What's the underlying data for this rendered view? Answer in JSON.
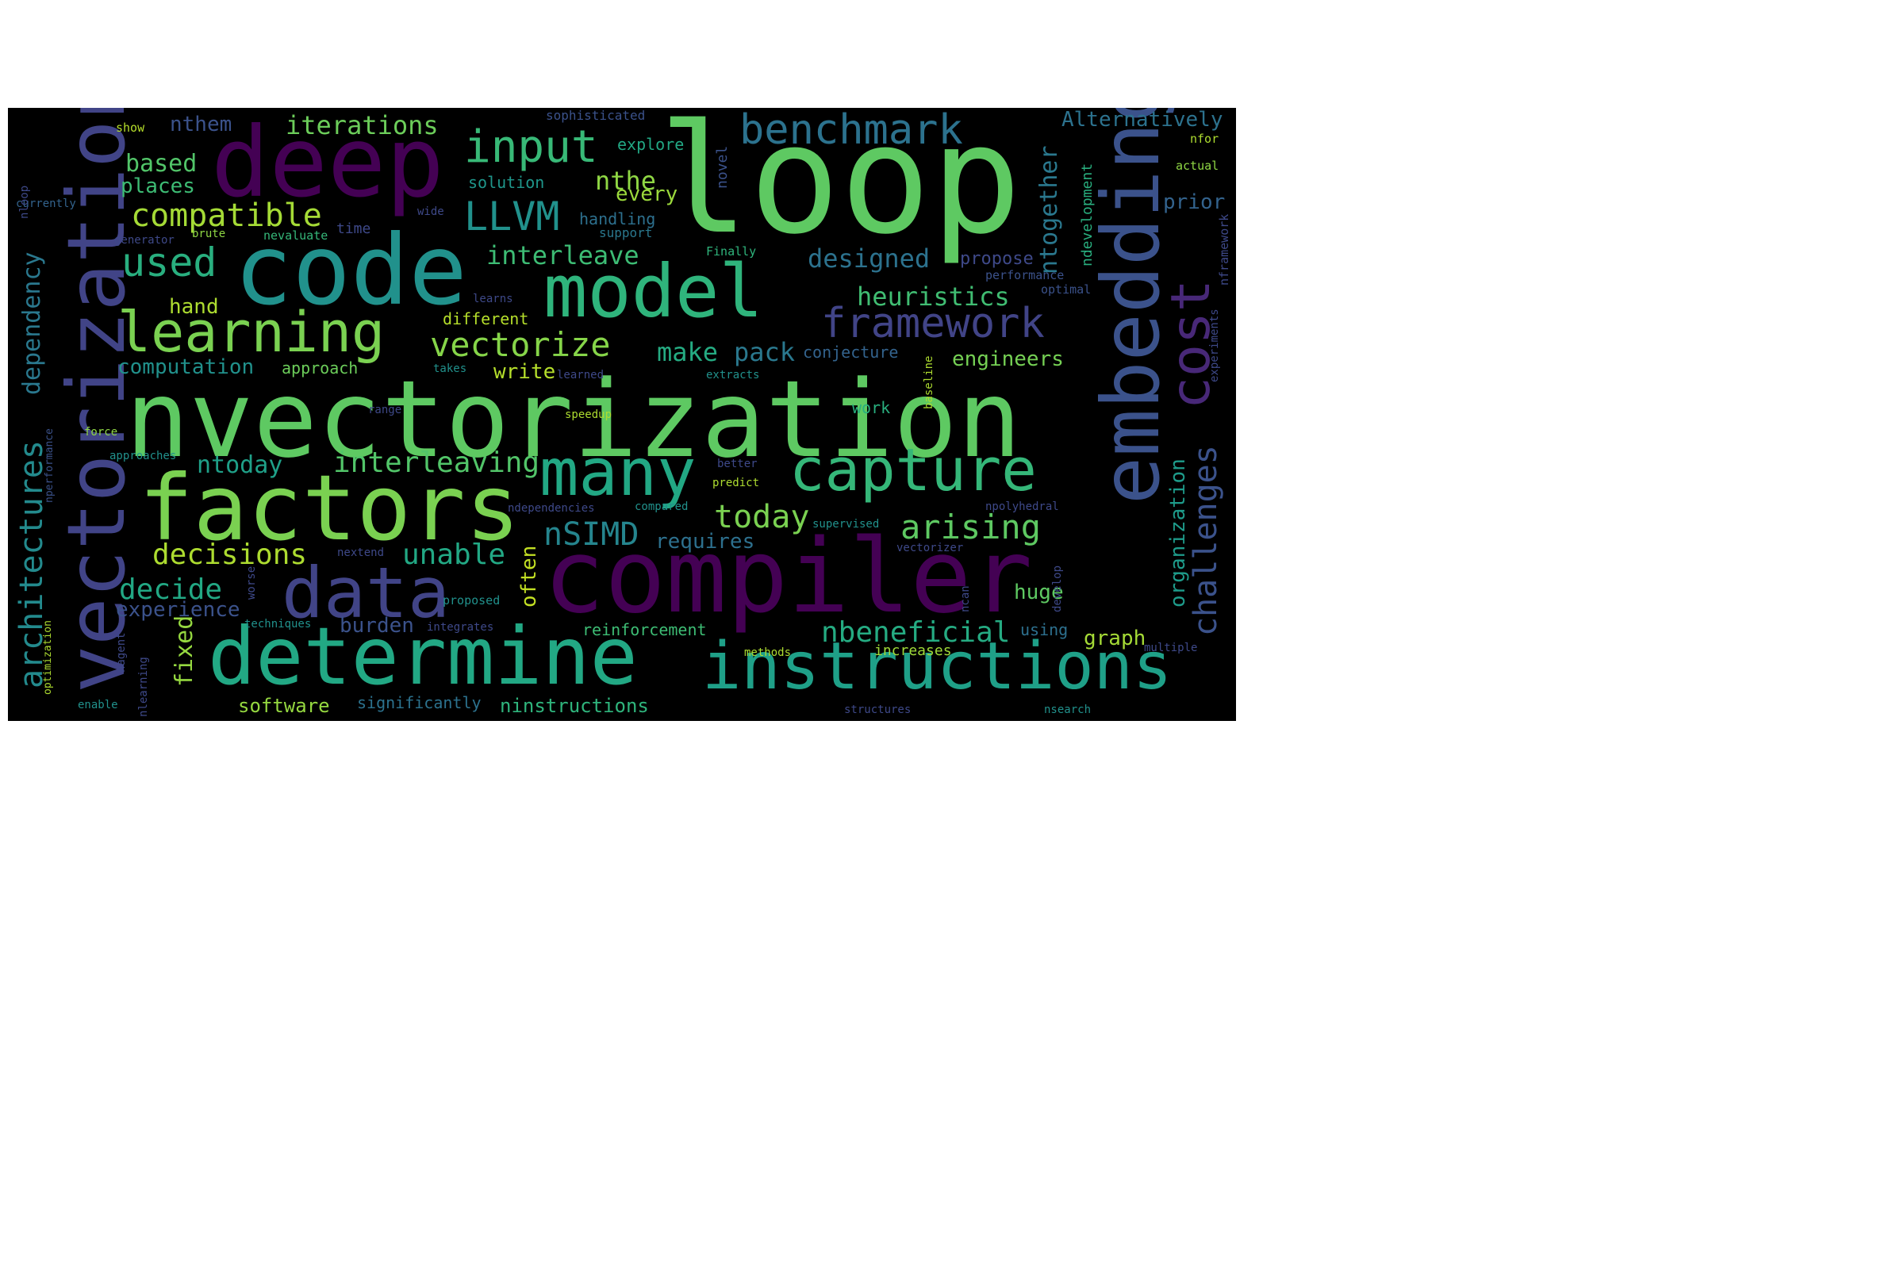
{
  "words": [
    {
      "text": "nvectorization",
      "color": "#5ec962"
    },
    {
      "text": "loop",
      "color": "#5ec962"
    },
    {
      "text": "compiler",
      "color": "#440154"
    },
    {
      "text": "code",
      "color": "#21918c"
    },
    {
      "text": "factors",
      "color": "#7ad151"
    },
    {
      "text": "deep",
      "color": "#440154"
    },
    {
      "text": "vectorization",
      "color": "#414487"
    },
    {
      "text": "determine",
      "color": "#22a884"
    },
    {
      "text": "model",
      "color": "#2fb47c"
    },
    {
      "text": "embedding",
      "color": "#3b528b"
    },
    {
      "text": "instructions",
      "color": "#1fa088"
    },
    {
      "text": "data",
      "color": "#414487"
    },
    {
      "text": "capture",
      "color": "#35b779"
    },
    {
      "text": "many",
      "color": "#22a884"
    },
    {
      "text": "learning",
      "color": "#7ad151"
    },
    {
      "text": "cost",
      "color": "#482878"
    },
    {
      "text": "benchmark",
      "color": "#2c728e"
    },
    {
      "text": "input",
      "color": "#38b977"
    },
    {
      "text": "framework",
      "color": "#414487"
    },
    {
      "text": "LLVM",
      "color": "#21918c"
    },
    {
      "text": "used",
      "color": "#29af7f"
    },
    {
      "text": "vectorize",
      "color": "#86d549"
    },
    {
      "text": "compatible",
      "color": "#a5db36"
    },
    {
      "text": "arising",
      "color": "#5ec962"
    },
    {
      "text": "challenges",
      "color": "#3b528b"
    },
    {
      "text": "architectures",
      "color": "#238a8d"
    },
    {
      "text": "nSIMD",
      "color": "#25858e"
    },
    {
      "text": "interleaving",
      "color": "#52c569"
    },
    {
      "text": "today",
      "color": "#7ad151"
    },
    {
      "text": "decisions",
      "color": "#addc30"
    },
    {
      "text": "unable",
      "color": "#22a884"
    },
    {
      "text": "decide",
      "color": "#22a884"
    },
    {
      "text": "nbeneficial",
      "color": "#25ab82"
    },
    {
      "text": "iterations",
      "color": "#6ccd5a"
    },
    {
      "text": "dependency",
      "color": "#2a788e"
    },
    {
      "text": "designed",
      "color": "#2c728e"
    },
    {
      "text": "interleave",
      "color": "#3dbc74"
    },
    {
      "text": "heuristics",
      "color": "#40bd72"
    },
    {
      "text": "make",
      "color": "#25ab82"
    },
    {
      "text": "pack",
      "color": "#2a788e"
    },
    {
      "text": "ntogether",
      "color": "#2a788e"
    },
    {
      "text": "nthe",
      "color": "#8fd744"
    },
    {
      "text": "based",
      "color": "#52c569"
    },
    {
      "text": "places",
      "color": "#3dbc74"
    },
    {
      "text": "organization",
      "color": "#1e9b8a"
    },
    {
      "text": "ntoday",
      "color": "#1fa088"
    },
    {
      "text": "computation",
      "color": "#21918c"
    },
    {
      "text": "Alternatively",
      "color": "#2c728e"
    },
    {
      "text": "engineers",
      "color": "#75d054"
    },
    {
      "text": "requires",
      "color": "#2d708e"
    },
    {
      "text": "often",
      "color": "#c2df23"
    },
    {
      "text": "nthem",
      "color": "#3b528b"
    },
    {
      "text": "fixed",
      "color": "#95d840"
    },
    {
      "text": "experience",
      "color": "#3b528b"
    },
    {
      "text": "huge",
      "color": "#5ec962"
    },
    {
      "text": "write",
      "color": "#b5de2b"
    },
    {
      "text": "graph",
      "color": "#a5db36"
    },
    {
      "text": "every",
      "color": "#9bd93c"
    },
    {
      "text": "prior",
      "color": "#33638d"
    },
    {
      "text": "burden",
      "color": "#3b528b"
    },
    {
      "text": "hand",
      "color": "#addc30"
    },
    {
      "text": "software",
      "color": "#95d840"
    },
    {
      "text": "ninstructions",
      "color": "#2fb47c"
    },
    {
      "text": "ndevelopment",
      "color": "#29af7f"
    },
    {
      "text": "reinforcement",
      "color": "#3dbc74"
    },
    {
      "text": "significantly",
      "color": "#2c728e"
    },
    {
      "text": "approach",
      "color": "#6ccd5a"
    },
    {
      "text": "different",
      "color": "#b5de2b"
    },
    {
      "text": "handling",
      "color": "#2d708e"
    },
    {
      "text": "propose",
      "color": "#3e4989"
    },
    {
      "text": "conjecture",
      "color": "#33638d"
    },
    {
      "text": "increases",
      "color": "#a0da39"
    },
    {
      "text": "using",
      "color": "#2d708e"
    },
    {
      "text": "work",
      "color": "#29af7f"
    },
    {
      "text": "solution",
      "color": "#1f968b"
    },
    {
      "text": "explore",
      "color": "#22a884"
    },
    {
      "text": "novel",
      "color": "#3b528b"
    },
    {
      "text": "time",
      "color": "#3e4989"
    },
    {
      "text": "support",
      "color": "#2a788e"
    },
    {
      "text": "nevaluate",
      "color": "#35b779"
    },
    {
      "text": "show",
      "color": "#b5de2b"
    },
    {
      "text": "sophisticated",
      "color": "#3b528b"
    },
    {
      "text": "nfor",
      "color": "#addc30"
    },
    {
      "text": "actual",
      "color": "#8fd744"
    },
    {
      "text": "nframework",
      "color": "#3e4989"
    },
    {
      "text": "performance",
      "color": "#3b528b"
    },
    {
      "text": "optimal",
      "color": "#3b528b"
    },
    {
      "text": "Finally",
      "color": "#2fb47c"
    },
    {
      "text": "generator",
      "color": "#3e4989"
    },
    {
      "text": "brute",
      "color": "#8fd744"
    },
    {
      "text": "wide",
      "color": "#3e4989"
    },
    {
      "text": "currently",
      "color": "#33638d"
    },
    {
      "text": "nloop",
      "color": "#3e4989"
    },
    {
      "text": "learns",
      "color": "#3e4989"
    },
    {
      "text": "learned",
      "color": "#3e4989"
    },
    {
      "text": "takes",
      "color": "#21918c"
    },
    {
      "text": "extracts",
      "color": "#21918c"
    },
    {
      "text": "range",
      "color": "#3e4989"
    },
    {
      "text": "speedup",
      "color": "#addc30"
    },
    {
      "text": "baseline",
      "color": "#addc30"
    },
    {
      "text": "experiments",
      "color": "#3e4989"
    },
    {
      "text": "force",
      "color": "#8fd744"
    },
    {
      "text": "approaches",
      "color": "#21918c"
    },
    {
      "text": "nperformance",
      "color": "#3b528b"
    },
    {
      "text": "better",
      "color": "#3e4989"
    },
    {
      "text": "predict",
      "color": "#addc30"
    },
    {
      "text": "ndependencies",
      "color": "#3e4989"
    },
    {
      "text": "compared",
      "color": "#21918c"
    },
    {
      "text": "npolyhedral",
      "color": "#3e4989"
    },
    {
      "text": "supervised",
      "color": "#21918c"
    },
    {
      "text": "vectorizer",
      "color": "#3e4989"
    },
    {
      "text": "nextend",
      "color": "#3e4989"
    },
    {
      "text": "proposed",
      "color": "#21918c"
    },
    {
      "text": "ncan",
      "color": "#3e4989"
    },
    {
      "text": "develop",
      "color": "#3e4989"
    },
    {
      "text": "worse",
      "color": "#3e4989"
    },
    {
      "text": "techniques",
      "color": "#21918c"
    },
    {
      "text": "integrates",
      "color": "#3e4989"
    },
    {
      "text": "methods",
      "color": "#addc30"
    },
    {
      "text": "multiple",
      "color": "#3e4989"
    },
    {
      "text": "nagent",
      "color": "#3e4989"
    },
    {
      "text": "nlearning",
      "color": "#3e4989"
    },
    {
      "text": "optimization",
      "color": "#addc30"
    },
    {
      "text": "enable",
      "color": "#21918c"
    },
    {
      "text": "structures",
      "color": "#3e4989"
    },
    {
      "text": "nsearch",
      "color": "#21918c"
    }
  ]
}
